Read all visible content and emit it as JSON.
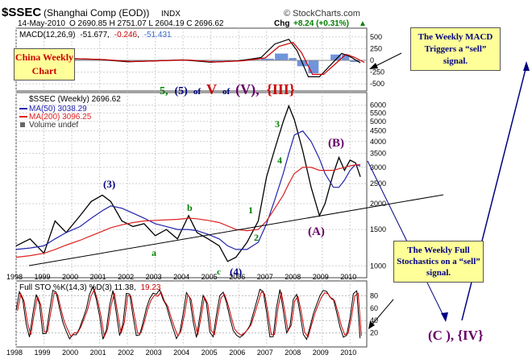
{
  "header": {
    "symbol": "$SSEC",
    "name": "(Shanghai Comp (EOD))",
    "exchange": "INDX",
    "date": "14-May-2010",
    "ohlc": "O 2690.85  H 2751.07  L 2604.19  C 2696.62",
    "change_label": "Chg",
    "change": "+8.24 (+0.31%)",
    "change_arrow": "▲",
    "brand": "© StockCharts.com"
  },
  "macd": {
    "label": "MACD(12,26,9)",
    "v1": "-51.677",
    "v2": "-0.246",
    "v3": "-51.431",
    "ticks": [
      "500",
      "250",
      "0",
      "-250",
      "-500"
    ]
  },
  "price": {
    "label": "$SSEC (Weekly) 2696.62",
    "ma50": "MA(50) 3038.29",
    "ma200": "MA(200) 3096.25",
    "volume": "Volume undef",
    "ticks": [
      "6000",
      "5500",
      "5000",
      "4500",
      "4000",
      "3500",
      "3000",
      "2500",
      "2000",
      "1500",
      "1000"
    ]
  },
  "sto": {
    "label": "Full STO %K(14,3) %D(3) 11.38,",
    "v2": "19.23",
    "ticks": [
      "80",
      "60",
      "40",
      "20"
    ]
  },
  "x_ticks": [
    "1998",
    "1999",
    "2000",
    "2001",
    "2002",
    "2003",
    "2004",
    "2005",
    "2006",
    "2007",
    "2008",
    "2009",
    "2010"
  ],
  "annotations": {
    "china_title": "China Weekly Chart",
    "macd_note": "The Weekly MACD Triggers a “sell” signal.",
    "sto_note": "The Weekly Full Stochastics on a “sell” signal.",
    "count_5": "5,",
    "count_paren5": "(5)",
    "count_of1": "of",
    "count_V": "V",
    "count_of2": "of",
    "count_paren_V": "(V),",
    "count_III": "{III}",
    "wave_3": "(3)",
    "wave_4": "(4)",
    "wave_a": "a",
    "wave_b": "b",
    "wave_c": "c",
    "wave_1": "1",
    "wave_2": "2",
    "wave_3s": "3",
    "wave_4s": "4",
    "wave_B": "(B)",
    "wave_A": "(A)",
    "target": "(C ), {IV}"
  },
  "colors": {
    "ma50": "#2222aa",
    "ma200": "#dd2222",
    "price": "#000000",
    "macd_hist": "#3366cc",
    "wave_green": "#008000",
    "wave_navy": "#000080",
    "wave_purple": "#660066",
    "callout_bg": "#ffff99",
    "accent_red": "#cc0000"
  },
  "chart_data": {
    "type": "line",
    "title": "$SSEC (Shanghai Comp (EOD)) Weekly",
    "x": [
      1998.0,
      1998.5,
      1999.0,
      1999.4,
      1999.8,
      2000.3,
      2000.7,
      2001.1,
      2001.4,
      2001.8,
      2002.2,
      2002.6,
      2003.0,
      2003.4,
      2003.8,
      2004.2,
      2004.5,
      2004.9,
      2005.3,
      2005.6,
      2005.9,
      2006.3,
      2006.7,
      2007.0,
      2007.3,
      2007.6,
      2007.8,
      2008.0,
      2008.3,
      2008.6,
      2008.9,
      2009.1,
      2009.4,
      2009.6,
      2009.8,
      2010.0,
      2010.2,
      2010.37
    ],
    "series": [
      {
        "name": "$SSEC (Weekly)",
        "values": [
          1250,
          1350,
          1150,
          1650,
          1450,
          1750,
          2050,
          2200,
          2050,
          1650,
          1550,
          1600,
          1400,
          1500,
          1350,
          1750,
          1450,
          1350,
          1250,
          1050,
          1100,
          1300,
          1650,
          2700,
          3700,
          5000,
          5950,
          5100,
          3600,
          2400,
          1750,
          2000,
          2800,
          3350,
          2900,
          3250,
          3150,
          2697
        ]
      },
      {
        "name": "MA(50)",
        "values": [
          1200,
          1220,
          1250,
          1350,
          1450,
          1550,
          1700,
          1850,
          1950,
          1900,
          1800,
          1700,
          1600,
          1550,
          1500,
          1500,
          1480,
          1420,
          1350,
          1250,
          1200,
          1200,
          1300,
          1600,
          2100,
          2800,
          3500,
          4300,
          4500,
          4000,
          3300,
          2800,
          2400,
          2400,
          2600,
          2900,
          3100,
          3038
        ]
      },
      {
        "name": "MA(200)",
        "values": [
          1100,
          1120,
          1150,
          1200,
          1260,
          1330,
          1400,
          1470,
          1530,
          1580,
          1620,
          1650,
          1660,
          1670,
          1680,
          1700,
          1690,
          1660,
          1620,
          1560,
          1500,
          1480,
          1500,
          1650,
          1900,
          2200,
          2500,
          2800,
          3000,
          3000,
          2900,
          2900,
          2900,
          2950,
          3000,
          3050,
          3080,
          3096
        ]
      }
    ],
    "macd": {
      "name": "MACD(12,26,9)",
      "x": [
        1998,
        1999,
        2000,
        2001,
        2002,
        2003,
        2004,
        2005,
        2006,
        2006.8,
        2007.3,
        2007.8,
        2008.1,
        2008.5,
        2008.9,
        2009.3,
        2009.7,
        2010.0,
        2010.37
      ],
      "values": [
        0,
        10,
        40,
        20,
        -30,
        -10,
        10,
        -40,
        -10,
        60,
        350,
        450,
        200,
        -350,
        -350,
        -100,
        150,
        80,
        -52
      ]
    },
    "stochastic": {
      "name": "Full STO %K(14,3) %D(3)",
      "last_k": 11.38,
      "last_d": 19.23
    },
    "ylabel": "",
    "xlabel": "",
    "ylim": [
      900,
      6600
    ],
    "yscale": "log",
    "xlim": [
      1998,
      2010.6
    ]
  }
}
